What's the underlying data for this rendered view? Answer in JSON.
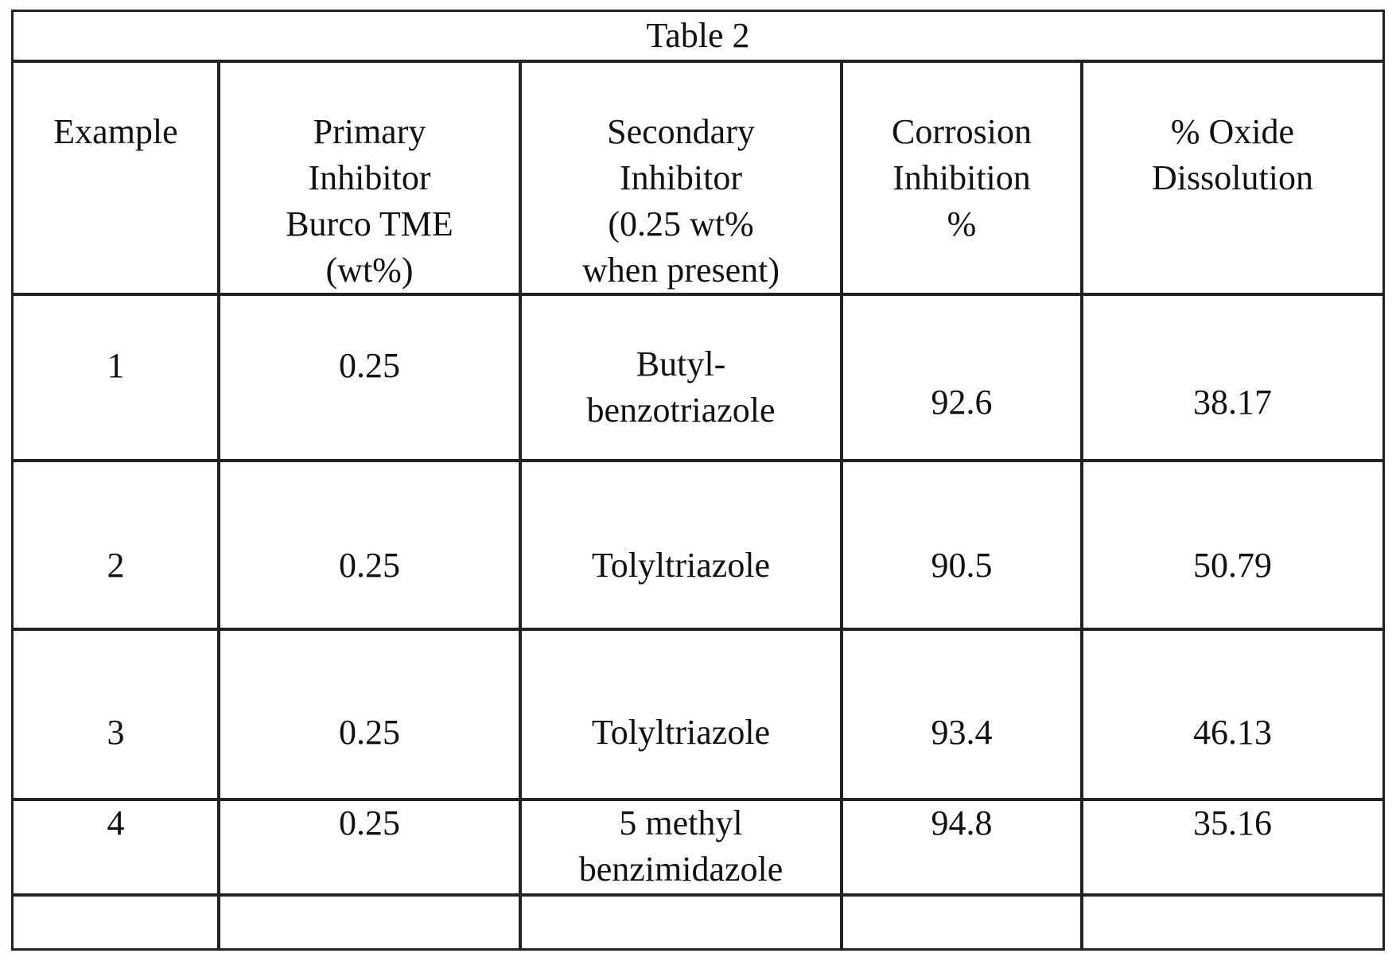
{
  "table": {
    "title": "Table 2",
    "headers": [
      "Example",
      "Primary\nInhibitor\nBurco TME\n(wt%)",
      "Secondary\nInhibitor\n(0.25 wt%\nwhen present)",
      "Corrosion\nInhibition\n%",
      "% Oxide\nDissolution"
    ],
    "rows": [
      [
        "1",
        "0.25",
        "Butyl-\nbenzotriazole",
        "92.6",
        "38.17"
      ],
      [
        "2",
        "0.25",
        "Tolyltriazole",
        "90.5",
        "50.79"
      ],
      [
        "3",
        "0.25",
        "Tolyltriazole",
        "93.4",
        "46.13"
      ],
      [
        "4",
        "0.25",
        "5 methyl\nbenzimidazole",
        "94.8",
        "35.16"
      ],
      [
        "",
        "",
        "",
        "",
        ""
      ]
    ]
  }
}
